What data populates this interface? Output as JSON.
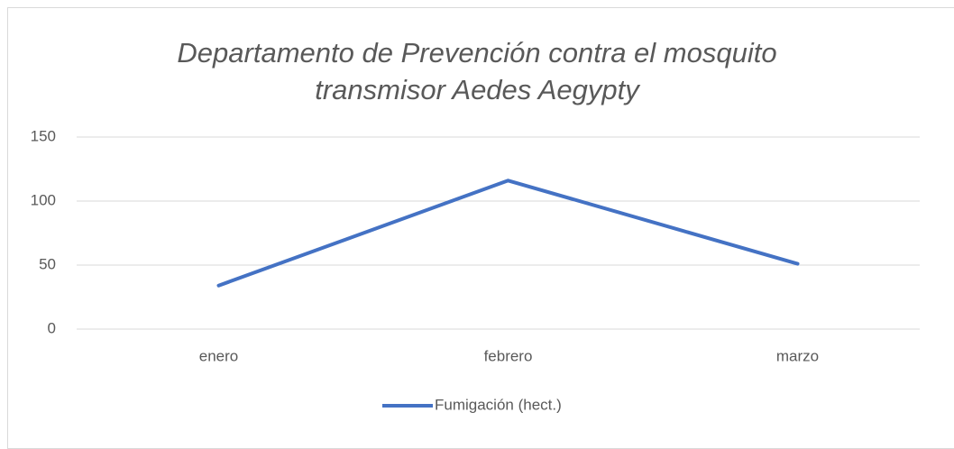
{
  "chart_data": {
    "type": "line",
    "title": "Departamento de Prevención contra el mosquito transmisor Aedes Aegypty",
    "categories": [
      "enero",
      "febrero",
      "marzo"
    ],
    "series": [
      {
        "name": "Fumigación (hect.)",
        "color": "#4472c4",
        "values": [
          34,
          116,
          51
        ]
      }
    ],
    "ylim": [
      0,
      150
    ],
    "yticks": [
      0,
      50,
      100,
      150
    ],
    "grid": true,
    "legend": "bottom"
  }
}
